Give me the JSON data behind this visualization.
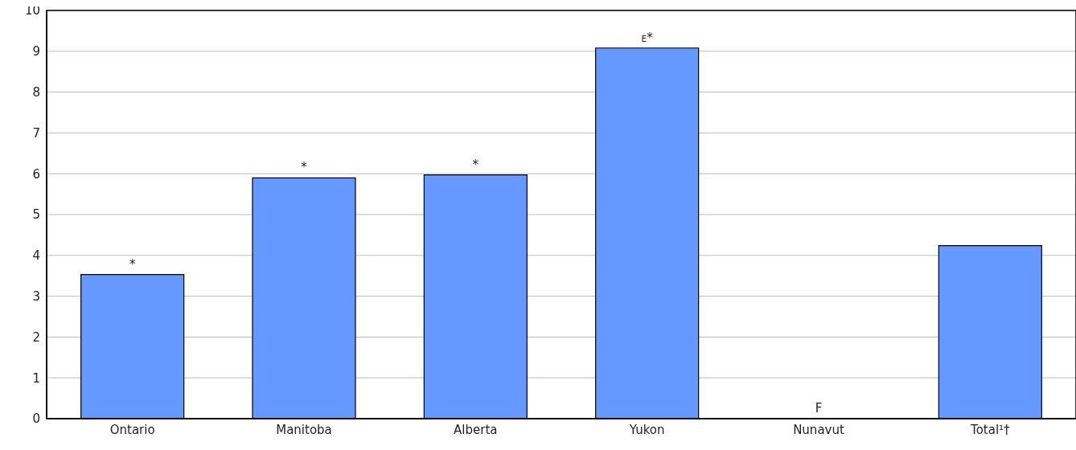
{
  "chart_data": {
    "type": "bar",
    "categories": [
      "Ontario",
      "Manitoba",
      "Alberta",
      "Yukon",
      "Nunavut",
      "Total¹†"
    ],
    "values": [
      3.53,
      5.9,
      5.97,
      9.08,
      null,
      4.24
    ],
    "value_labels": [
      "*",
      "*",
      "*",
      "$^{E}$*",
      "F",
      null
    ],
    "color": "#6699ff",
    "ylim": [
      0,
      10
    ],
    "yticks": [
      0,
      1,
      2,
      3,
      4,
      5,
      6,
      7,
      8,
      9,
      10
    ],
    "grid": "y"
  }
}
